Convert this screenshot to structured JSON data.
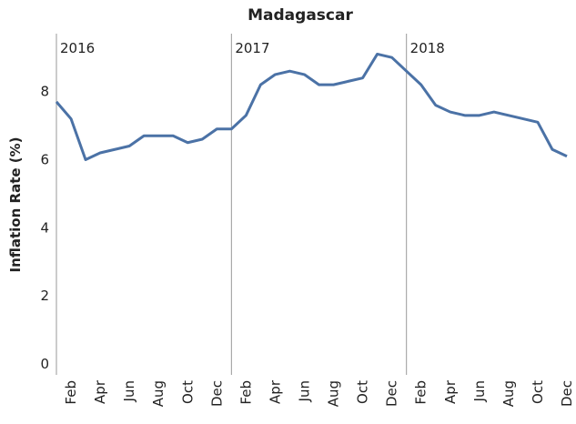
{
  "chart_data": {
    "type": "line",
    "title": "Madagascar",
    "y_label": "Inflation Rate (%)",
    "years": [
      "2016",
      "2017",
      "2018"
    ],
    "categories": [
      null,
      "Feb",
      null,
      "Apr",
      null,
      "Jun",
      null,
      "Aug",
      null,
      "Oct",
      null,
      "Dec",
      null,
      "Feb",
      null,
      "Apr",
      null,
      "Jun",
      null,
      "Aug",
      null,
      "Oct",
      null,
      "Dec",
      null,
      "Feb",
      null,
      "Apr",
      null,
      "Jun",
      null,
      "Aug",
      null,
      "Oct",
      null,
      "Dec"
    ],
    "series": [
      {
        "name": "Madagascar",
        "color": "#4b72a6",
        "values": [
          7.7,
          7.2,
          6.0,
          6.2,
          6.3,
          6.4,
          6.7,
          6.7,
          6.7,
          6.5,
          6.6,
          6.9,
          6.9,
          7.3,
          8.2,
          8.5,
          8.6,
          8.5,
          8.2,
          8.2,
          8.3,
          8.4,
          9.1,
          9.0,
          8.6,
          8.2,
          7.6,
          7.4,
          7.3,
          7.3,
          7.4,
          7.3,
          7.2,
          7.1,
          6.3,
          6.1
        ]
      }
    ],
    "ylim": [
      0,
      9.7
    ],
    "yticks": [
      0,
      2,
      4,
      6,
      8
    ]
  }
}
